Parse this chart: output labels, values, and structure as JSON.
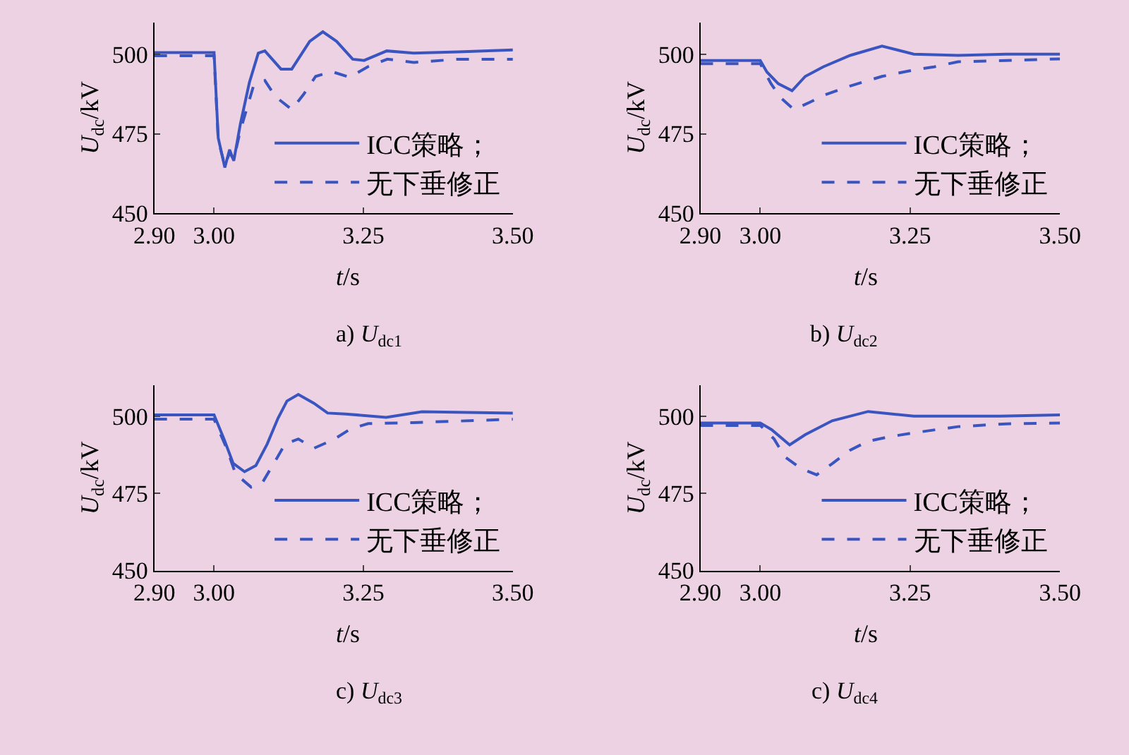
{
  "chart_data": [
    {
      "type": "line",
      "title": "a) U$_{dc1}$",
      "xlabel": "t/s",
      "ylabel": "U$_{dc}$/kV",
      "xlim": [
        2.9,
        3.5
      ],
      "ylim": [
        450,
        510
      ],
      "xticks": [
        {
          "value": 2.9,
          "label": "2.90"
        },
        {
          "value": 3.0,
          "label": "3.00"
        },
        {
          "value": 3.25,
          "label": "3.25"
        },
        {
          "value": 3.5,
          "label": "3.50"
        }
      ],
      "yticks": [
        450,
        475,
        500
      ],
      "grid": false,
      "legend": "bottom right",
      "series": [
        {
          "name": "ICC策略；",
          "color": "#3b55c0",
          "line_style": "solid",
          "x": [
            2.9,
            2.95,
            3.0,
            3.007,
            3.018,
            3.026,
            3.033,
            3.044,
            3.059,
            3.074,
            3.085,
            3.112,
            3.13,
            3.16,
            3.182,
            3.205,
            3.232,
            3.251,
            3.289,
            3.334,
            3.409,
            3.5
          ],
          "values": [
            500.5,
            500.5,
            500.5,
            473.7,
            464.4,
            470,
            466.5,
            478,
            491,
            500.3,
            501,
            495.3,
            495.3,
            504,
            507,
            504,
            498.4,
            498,
            501,
            500.3,
            500.7,
            501.3
          ]
        },
        {
          "name": "无下垂修正",
          "color": "#3b55c0",
          "line_style": "dashed",
          "x": [
            2.9,
            2.95,
            3.0,
            3.007,
            3.018,
            3.026,
            3.033,
            3.044,
            3.066,
            3.085,
            3.103,
            3.13,
            3.15,
            3.17,
            3.197,
            3.227,
            3.257,
            3.29,
            3.334,
            3.409,
            3.5
          ],
          "values": [
            499.5,
            499.5,
            499.5,
            473,
            465,
            469,
            467,
            476,
            490,
            491.7,
            486.6,
            482.6,
            487.4,
            493,
            494.5,
            492.7,
            496,
            498.4,
            497.4,
            498.4,
            498.4
          ]
        }
      ]
    },
    {
      "type": "line",
      "title": "b) U$_{dc2}$",
      "xlabel": "t/s",
      "ylabel": "U$_{dc}$/kV",
      "xlim": [
        2.9,
        3.5
      ],
      "ylim": [
        450,
        510
      ],
      "xticks": [
        {
          "value": 2.9,
          "label": "2.90"
        },
        {
          "value": 3.0,
          "label": "3.00"
        },
        {
          "value": 3.25,
          "label": "3.25"
        },
        {
          "value": 3.5,
          "label": "3.50"
        }
      ],
      "yticks": [
        450,
        475,
        500
      ],
      "grid": false,
      "legend": "bottom right",
      "series": [
        {
          "name": "ICC策略；",
          "color": "#3b55c0",
          "line_style": "solid",
          "x": [
            2.9,
            2.95,
            3.0,
            3.011,
            3.03,
            3.053,
            3.075,
            3.105,
            3.15,
            3.203,
            3.256,
            3.33,
            3.41,
            3.5
          ],
          "values": [
            498,
            498,
            498,
            494.4,
            490.7,
            488.5,
            493,
            496,
            499.6,
            502.5,
            500,
            499.6,
            500,
            500
          ]
        },
        {
          "name": "无下垂修正",
          "color": "#3b55c0",
          "line_style": "dashed",
          "x": [
            2.9,
            2.95,
            3.0,
            3.018,
            3.034,
            3.056,
            3.083,
            3.105,
            3.15,
            3.203,
            3.256,
            3.29,
            3.33,
            3.41,
            3.5
          ],
          "values": [
            497,
            497,
            497,
            490.7,
            486.3,
            482.6,
            484.9,
            487,
            490,
            493,
            495,
            496,
            497.6,
            498,
            498.5
          ]
        }
      ]
    },
    {
      "type": "line",
      "title": "c) U$_{dc3}$",
      "xlabel": "t/s",
      "ylabel": "U$_{dc}$/kV",
      "xlim": [
        2.9,
        3.5
      ],
      "ylim": [
        450,
        510
      ],
      "xticks": [
        {
          "value": 2.9,
          "label": "2.90"
        },
        {
          "value": 3.0,
          "label": "3.00"
        },
        {
          "value": 3.25,
          "label": "3.25"
        },
        {
          "value": 3.5,
          "label": "3.50"
        }
      ],
      "yticks": [
        450,
        475,
        500
      ],
      "grid": false,
      "legend": "bottom right",
      "series": [
        {
          "name": "ICC策略；",
          "color": "#3b55c0",
          "line_style": "solid",
          "x": [
            2.9,
            2.95,
            3.0,
            3.017,
            3.032,
            3.051,
            3.07,
            3.089,
            3.107,
            3.122,
            3.141,
            3.167,
            3.19,
            3.22,
            3.288,
            3.348,
            3.5
          ],
          "values": [
            500.4,
            500.4,
            500.4,
            492.4,
            484.7,
            482,
            484,
            491,
            499.3,
            504.9,
            507,
            504.2,
            501,
            500.7,
            499.6,
            501.4,
            501
          ]
        },
        {
          "name": "无下垂修正",
          "color": "#3b55c0",
          "line_style": "dashed",
          "x": [
            2.9,
            2.95,
            3.0,
            3.021,
            3.036,
            3.062,
            3.081,
            3.1,
            3.119,
            3.141,
            3.167,
            3.2,
            3.228,
            3.258,
            3.333,
            3.5
          ],
          "values": [
            499,
            499,
            499,
            489.6,
            481.3,
            477,
            478.5,
            484.7,
            491,
            492.6,
            489.6,
            492.4,
            495.8,
            497.6,
            497.9,
            499
          ]
        }
      ]
    },
    {
      "type": "line",
      "title": "c) U$_{dc4}$",
      "xlabel": "t/s",
      "ylabel": "U$_{dc}$/kV",
      "xlim": [
        2.9,
        3.5
      ],
      "ylim": [
        450,
        510
      ],
      "xticks": [
        {
          "value": 2.9,
          "label": "2.90"
        },
        {
          "value": 3.0,
          "label": "3.00"
        },
        {
          "value": 3.25,
          "label": "3.25"
        },
        {
          "value": 3.5,
          "label": "3.50"
        }
      ],
      "yticks": [
        450,
        475,
        500
      ],
      "grid": false,
      "legend": "bottom right",
      "series": [
        {
          "name": "ICC策略；",
          "color": "#3b55c0",
          "line_style": "solid",
          "x": [
            2.9,
            2.95,
            3.0,
            3.019,
            3.049,
            3.075,
            3.12,
            3.18,
            3.256,
            3.4,
            3.5
          ],
          "values": [
            497.8,
            497.8,
            497.8,
            495.6,
            490.7,
            494,
            498.5,
            501.5,
            500,
            500,
            500.4
          ]
        },
        {
          "name": "无下垂修正",
          "color": "#3b55c0",
          "line_style": "dashed",
          "x": [
            2.9,
            2.95,
            3.0,
            3.023,
            3.041,
            3.068,
            3.094,
            3.12,
            3.15,
            3.18,
            3.218,
            3.256,
            3.33,
            3.41,
            3.5
          ],
          "values": [
            497,
            497,
            497,
            492.6,
            486.8,
            483,
            481,
            484.6,
            489,
            491.9,
            493.4,
            494.6,
            496.6,
            497.5,
            497.8
          ]
        }
      ]
    }
  ]
}
